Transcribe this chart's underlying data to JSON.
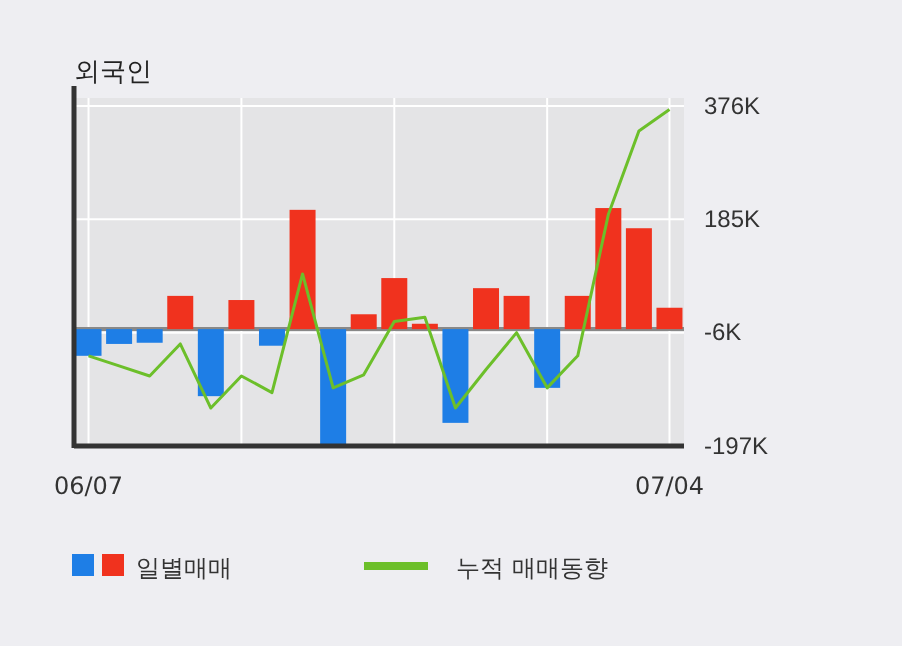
{
  "chart_data": {
    "type": "bar",
    "title": "외국인",
    "categories": [
      "06/07",
      null,
      null,
      null,
      null,
      null,
      null,
      null,
      null,
      null,
      null,
      null,
      null,
      null,
      null,
      null,
      null,
      null,
      null,
      "07/04"
    ],
    "series": [
      {
        "name": "일별매매",
        "colors": [
          "#1e7ee6",
          "#1e7ee6",
          "#1e7ee6",
          "#f0321e",
          "#1e7ee6",
          "#f0321e",
          "#1e7ee6",
          "#f0321e",
          "#1e7ee6",
          "#f0321e",
          "#f0321e",
          "#f0321e",
          "#1e7ee6",
          "#f0321e",
          "#f0321e",
          "#1e7ee6",
          "#f0321e",
          "#f0321e",
          "#f0321e",
          "#f0321e"
        ],
        "values": [
          -45,
          -25,
          -23,
          56,
          -113,
          49,
          -28,
          201,
          -197,
          25,
          86,
          9,
          -158,
          69,
          56,
          -99,
          56,
          204,
          170,
          36
        ]
      },
      {
        "name": "누적 매매동향",
        "type": "line",
        "color": "#6cbf2a",
        "values": [
          -45,
          -62,
          -79,
          -25,
          -133,
          -79,
          -107,
          93,
          -99,
          -77,
          13,
          20,
          -133,
          -68,
          -6,
          -99,
          -45,
          193,
          334,
          370
        ]
      }
    ],
    "ylim": [
      -197,
      376
    ],
    "yticks": [
      {
        "value": -197,
        "label": "-197K"
      },
      {
        "value": -6,
        "label": "-6K"
      },
      {
        "value": 185,
        "label": "185K"
      },
      {
        "value": 376,
        "label": "376K"
      }
    ],
    "grid": true,
    "legend": "bottom"
  }
}
